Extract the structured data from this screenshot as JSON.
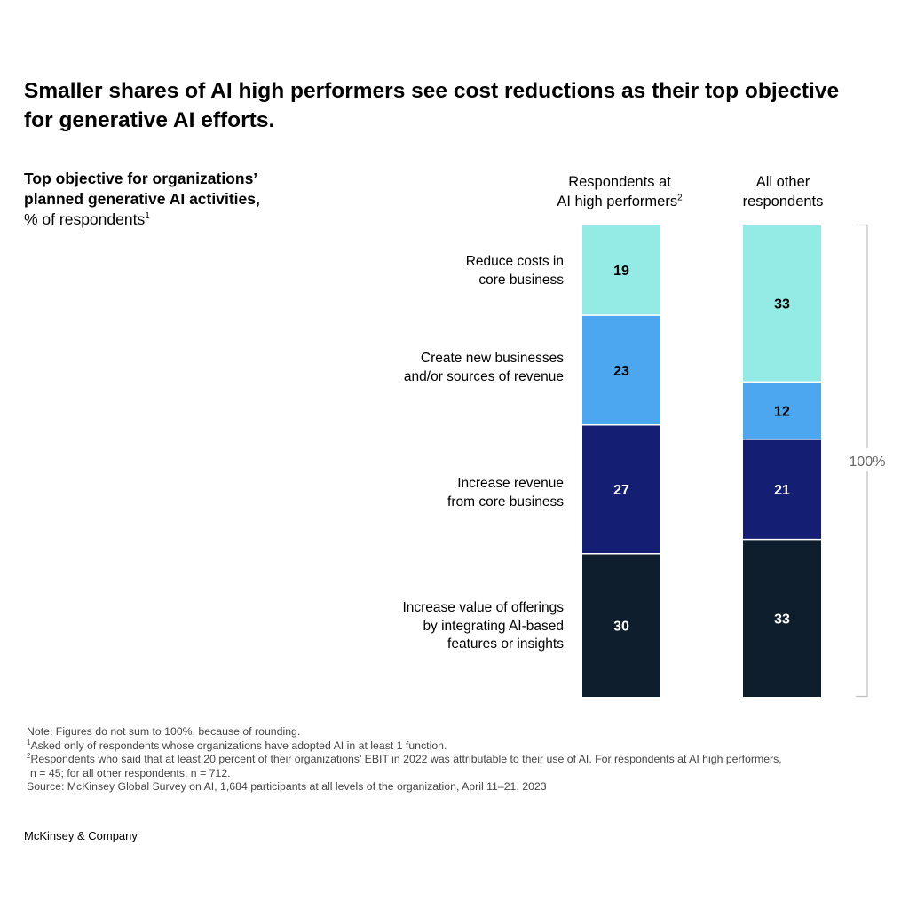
{
  "title": "Smaller shares of AI high performers see cost reductions as their top objective for generative AI efforts.",
  "subtitle": {
    "line1": "Top objective for organizations’",
    "line2": "planned generative AI activities,",
    "line3": "% of respondents",
    "line3_sup": "1"
  },
  "columns": [
    {
      "line1": "Respondents at",
      "line2": "AI high performers",
      "sup": "2"
    },
    {
      "line1": "All other",
      "line2": "respondents",
      "sup": ""
    }
  ],
  "categories": [
    {
      "line1": "Reduce costs in",
      "line2": "core business",
      "line3": ""
    },
    {
      "line1": "Create new businesses",
      "line2": "and/or sources of revenue",
      "line3": ""
    },
    {
      "line1": "Increase revenue",
      "line2": "from core business",
      "line3": ""
    },
    {
      "line1": "Increase value of offerings",
      "line2": "by integrating AI-based",
      "line3": "features or insights"
    }
  ],
  "chart_data": {
    "type": "bar",
    "stacked": true,
    "orientation": "vertical",
    "categories": [
      "Reduce costs in core business",
      "Create new businesses and/or sources of revenue",
      "Increase revenue from core business",
      "Increase value of offerings by integrating AI-based features or insights"
    ],
    "series": [
      {
        "name": "Respondents at AI high performers",
        "values": [
          19,
          23,
          27,
          30
        ]
      },
      {
        "name": "All other respondents",
        "values": [
          33,
          12,
          21,
          33
        ]
      }
    ],
    "colors": [
      "#94ebe6",
      "#4ca7f0",
      "#141f73",
      "#0e1e2c"
    ],
    "label_colors": [
      "#000000",
      "#000000",
      "#ffffff",
      "#ffffff"
    ],
    "total_label": "100%"
  },
  "footnotes": {
    "note": "Note: Figures do not sum to 100%, because of rounding.",
    "fn1_sup": "1",
    "fn1": "Asked only of respondents whose organizations have adopted AI in at least 1 function.",
    "fn2_sup": "2",
    "fn2_line1": "Respondents who said that at least 20 percent of their organizations’ EBIT in 2022 was attributable to their use of AI. For respondents at AI high performers,",
    "fn2_line2": "n = 45; for all other respondents, n = 712.",
    "source": "Source: McKinsey Global Survey on AI, 1,684 participants at all levels of the organization, April 11–21, 2023"
  },
  "brand": "McKinsey & Company"
}
